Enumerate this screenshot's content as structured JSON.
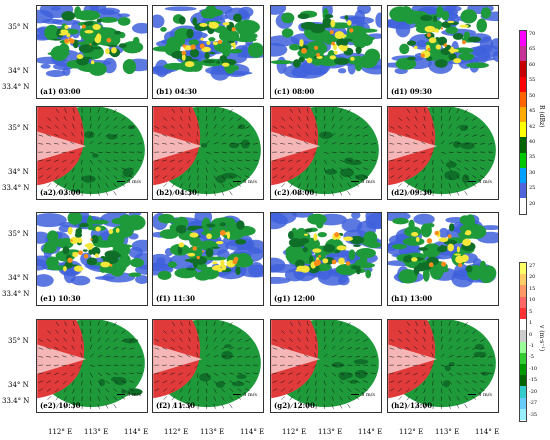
{
  "panels": [
    {
      "id": "a1",
      "label": "(a1) 03:00",
      "kind": "reflectivity"
    },
    {
      "id": "b1",
      "label": "(b1) 04:30",
      "kind": "reflectivity"
    },
    {
      "id": "c1",
      "label": "(c1) 08:00",
      "kind": "reflectivity"
    },
    {
      "id": "d1",
      "label": "(d1) 09:30",
      "kind": "reflectivity"
    },
    {
      "id": "a2",
      "label": "(a2) 03:00",
      "kind": "velocity",
      "speed": "8 m/s"
    },
    {
      "id": "b2",
      "label": "(b2) 04:30",
      "kind": "velocity",
      "speed": "8 m/s"
    },
    {
      "id": "c2",
      "label": "(c2) 08:00",
      "kind": "velocity",
      "speed": "8 m/s"
    },
    {
      "id": "d2",
      "label": "(d2) 09:30",
      "kind": "velocity",
      "speed": "8 m/s"
    },
    {
      "id": "e1",
      "label": "(e1) 10:30",
      "kind": "reflectivity"
    },
    {
      "id": "f1",
      "label": "(f1) 11:30",
      "kind": "reflectivity"
    },
    {
      "id": "g1",
      "label": "(g1) 12:00",
      "kind": "reflectivity"
    },
    {
      "id": "h1",
      "label": "(h1) 13:00",
      "kind": "reflectivity"
    },
    {
      "id": "e2",
      "label": "(e2) 10:30",
      "kind": "velocity",
      "speed": "8 m/s"
    },
    {
      "id": "f2",
      "label": "(f2) 11:30",
      "kind": "velocity",
      "speed": "8 m/s"
    },
    {
      "id": "g2",
      "label": "(g2) 12:00",
      "kind": "velocity",
      "speed": "8 m/s"
    },
    {
      "id": "h2",
      "label": "(h2) 13:00",
      "kind": "velocity",
      "speed": "8 m/s"
    }
  ],
  "lat_labels": [
    "35° N",
    "34° N",
    "33.4° N"
  ],
  "lon_labels": [
    "112° E",
    "113° E",
    "114° E"
  ],
  "colorbar_top": {
    "title": "R (dBz)",
    "ticks": [
      "70",
      "65",
      "60",
      "55",
      "50",
      "45",
      "42",
      "40",
      "35",
      "30",
      "25",
      "20"
    ],
    "colors": [
      "#ff00ff",
      "#c83296",
      "#c80000",
      "#ff0000",
      "#ff6400",
      "#ffaa00",
      "#ffff00",
      "#006400",
      "#00c800",
      "#00a0ff",
      "#5064dc",
      "#ffffff"
    ]
  },
  "colorbar_bottom": {
    "title": "v (m·s⁻¹)",
    "ticks": [
      "27",
      "20",
      "15",
      "10",
      "5",
      "1",
      "0",
      "-1",
      "-5",
      "-10",
      "-15",
      "-20",
      "-27",
      "-35"
    ],
    "colors": [
      "#ffff66",
      "#ffcc66",
      "#ff9966",
      "#ff6666",
      "#ff3333",
      "#ffffff",
      "#cccccc",
      "#99ff99",
      "#33cc33",
      "#009900",
      "#006600",
      "#33cccc",
      "#66ccff",
      "#99eeff"
    ]
  },
  "colors": {
    "red": "#e03a3a",
    "green": "#1f9a3a",
    "darkgreen": "#0f6e28",
    "yellow": "#f5e83a",
    "blue": "#4060dc",
    "orange": "#ff8c1a"
  }
}
